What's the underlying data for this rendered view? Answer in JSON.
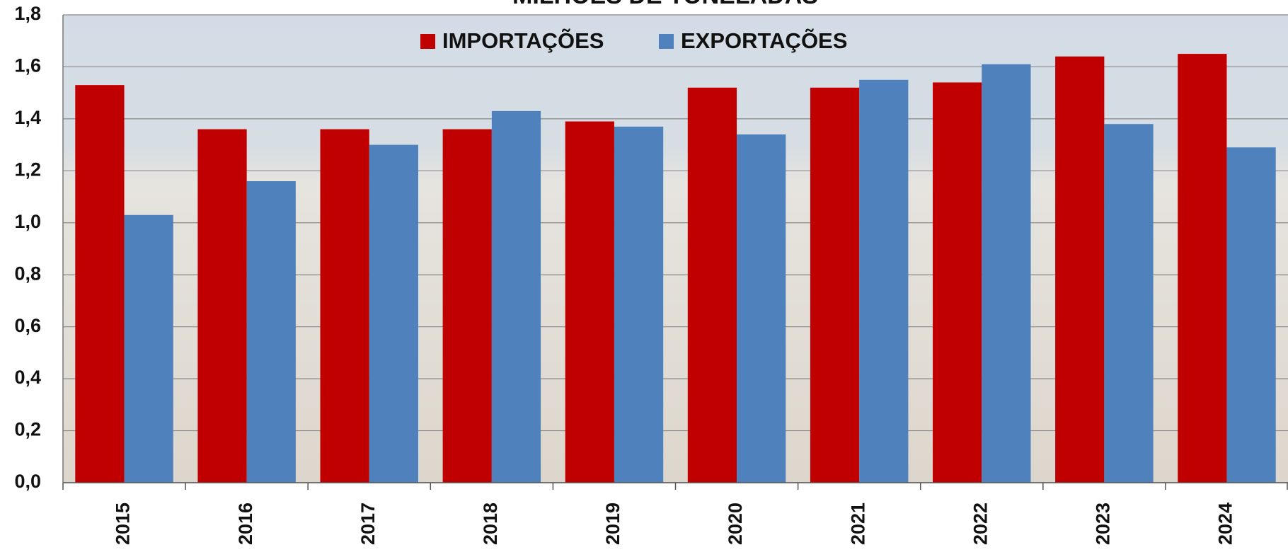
{
  "chart_data": {
    "type": "bar",
    "title": "MILHÕES DE TONELADAS",
    "categories": [
      "2015",
      "2016",
      "2017",
      "2018",
      "2019",
      "2020",
      "2021",
      "2022",
      "2023",
      "2024"
    ],
    "series": [
      {
        "name": "IMPORTAÇÕES",
        "color": "#c00000",
        "values": [
          1.53,
          1.36,
          1.36,
          1.36,
          1.39,
          1.52,
          1.52,
          1.54,
          1.64,
          1.65
        ]
      },
      {
        "name": "EXPORTAÇÕES",
        "color": "#4f81bd",
        "values": [
          1.03,
          1.16,
          1.3,
          1.43,
          1.37,
          1.34,
          1.55,
          1.61,
          1.38,
          1.29
        ]
      }
    ],
    "ylim": [
      0,
      1.8
    ],
    "yticks": [
      {
        "value": 0,
        "label": "0,0"
      },
      {
        "value": 0.2,
        "label": "0,2"
      },
      {
        "value": 0.4,
        "label": "0,4"
      },
      {
        "value": 0.6,
        "label": "0,6"
      },
      {
        "value": 0.8,
        "label": "0,8"
      },
      {
        "value": 1.0,
        "label": "1,0"
      },
      {
        "value": 1.2,
        "label": "1,2"
      },
      {
        "value": 1.4,
        "label": "1,4"
      },
      {
        "value": 1.6,
        "label": "1,6"
      },
      {
        "value": 1.8,
        "label": "1,8"
      }
    ],
    "grid": true,
    "legend": "top"
  }
}
